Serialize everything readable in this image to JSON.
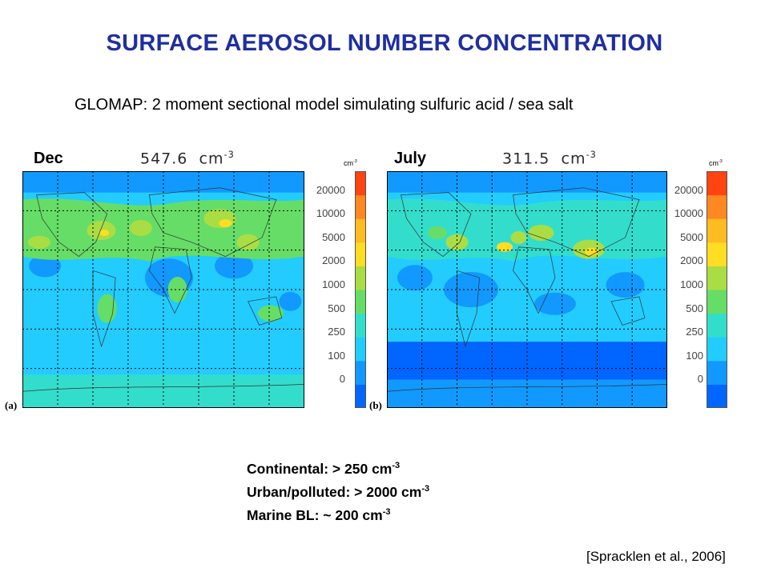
{
  "title": "SURFACE AEROSOL NUMBER CONCENTRATION",
  "subtitle": "GLOMAP: 2 moment sectional model simulating sulfuric acid / sea salt",
  "panels": [
    {
      "label": "Dec",
      "mean": "547.6",
      "mean_unit": "cm",
      "mean_exp": "-3",
      "letter": "(a)"
    },
    {
      "label": "July",
      "mean": "311.5",
      "mean_unit": "cm",
      "mean_exp": "-3",
      "letter": "(b)"
    }
  ],
  "colorbar": {
    "unit": "cm",
    "unit_exp": "-3",
    "ticks": [
      "20000",
      "10000",
      "5000",
      "2000",
      "1000",
      "500",
      "250",
      "100",
      "0"
    ],
    "colors": [
      "#0066ff",
      "#1199ff",
      "#22ccff",
      "#33ddcc",
      "#66dd66",
      "#aadd44",
      "#ffdd22",
      "#ffbb22",
      "#ff8822",
      "#ff4411"
    ]
  },
  "notes": [
    {
      "text": "Continental: > 250 cm",
      "exp": "-3"
    },
    {
      "text": "Urban/polluted: > 2000 cm",
      "exp": "-3"
    },
    {
      "text": "Marine BL: ~ 200 cm",
      "exp": "-3"
    }
  ],
  "citation": "[Spracklen et al., 2006]"
}
